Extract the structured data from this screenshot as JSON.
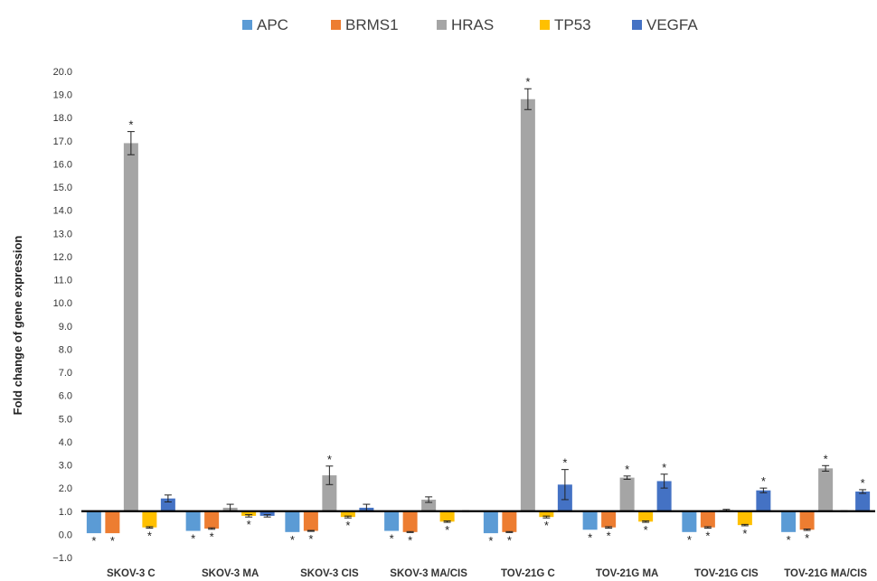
{
  "chart_data": {
    "type": "bar",
    "title": "",
    "xlabel": "",
    "ylabel": "Fold change of gene expression",
    "ylim": [
      -1.0,
      20.0
    ],
    "ytick_step": 1.0,
    "baseline": 1.0,
    "grid": false,
    "legend_position": "top",
    "categories": [
      "SKOV-3 C",
      "SKOV-3 MA",
      "SKOV-3 CIS",
      "SKOV-3 MA/CIS",
      "TOV-21G C",
      "TOV-21G MA",
      "TOV-21G CIS",
      "TOV-21G MA/CIS"
    ],
    "series": [
      {
        "name": "APC",
        "color": "#5B9BD5",
        "values": [
          0.05,
          0.15,
          0.1,
          0.15,
          0.05,
          0.2,
          0.1,
          0.1
        ],
        "errors": [
          0,
          0,
          0,
          0,
          0,
          0,
          0,
          0
        ],
        "significant": [
          true,
          true,
          true,
          true,
          true,
          true,
          true,
          true
        ]
      },
      {
        "name": "BRMS1",
        "color": "#ED7D31",
        "values": [
          0.05,
          0.25,
          0.15,
          0.1,
          0.1,
          0.3,
          0.3,
          0.2
        ],
        "errors": [
          0,
          0.03,
          0.02,
          0.02,
          0.02,
          0.03,
          0.03,
          0.03
        ],
        "significant": [
          true,
          true,
          true,
          true,
          true,
          true,
          true,
          true
        ]
      },
      {
        "name": "HRAS",
        "color": "#A5A5A5",
        "values": [
          16.9,
          1.15,
          2.55,
          1.5,
          18.8,
          2.45,
          1.05,
          2.85
        ],
        "errors": [
          0.5,
          0.15,
          0.4,
          0.12,
          0.45,
          0.07,
          0.03,
          0.12
        ],
        "significant": [
          true,
          false,
          true,
          false,
          true,
          true,
          false,
          true
        ]
      },
      {
        "name": "TP53",
        "color": "#FFC000",
        "values": [
          0.3,
          0.8,
          0.75,
          0.55,
          0.75,
          0.55,
          0.4,
          1.0
        ],
        "errors": [
          0.03,
          0.05,
          0.04,
          0.03,
          0.04,
          0.03,
          0.03,
          0.02
        ],
        "significant": [
          true,
          true,
          true,
          true,
          true,
          true,
          true,
          false
        ]
      },
      {
        "name": "VEGFA",
        "color": "#4472C4",
        "values": [
          1.55,
          0.8,
          1.15,
          1.0,
          2.15,
          2.3,
          1.9,
          1.85
        ],
        "errors": [
          0.15,
          0.05,
          0.15,
          0.02,
          0.65,
          0.3,
          0.1,
          0.08
        ],
        "significant": [
          false,
          false,
          false,
          false,
          true,
          true,
          true,
          true
        ]
      }
    ],
    "significance_marker": "*"
  }
}
